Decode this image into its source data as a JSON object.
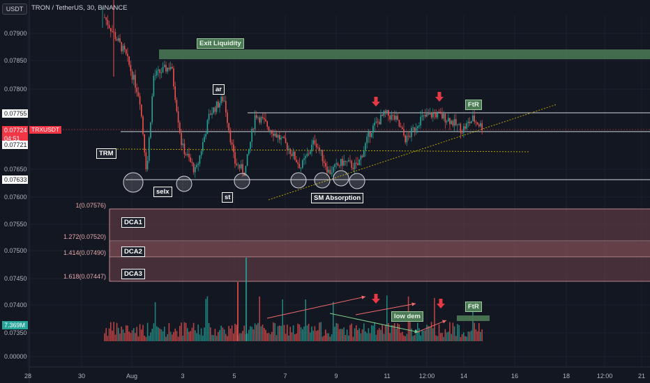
{
  "header": {
    "currency_button": "USDT",
    "title": "TRON / TetherUS, 30, BINANCE"
  },
  "price_axis": {
    "ticks": [
      "0.07900",
      "0.07850",
      "0.07800",
      "0.07650",
      "0.07600",
      "0.07550",
      "0.07500",
      "0.07450",
      "0.07400",
      "0.07350",
      "0.00000"
    ],
    "tags": [
      {
        "text": "0.07755",
        "style": "white"
      },
      {
        "text": "0.07724",
        "style": "red"
      },
      {
        "text": "04:51",
        "style": "red"
      },
      {
        "text": "0.07721",
        "style": "white"
      },
      {
        "text": "0.07633",
        "style": "white"
      },
      {
        "text": "7.369M",
        "style": "green"
      }
    ],
    "symbol_tag": "TRXUSDT"
  },
  "time_axis": {
    "ticks": [
      "28",
      "30",
      "Aug",
      "3",
      "5",
      "7",
      "9",
      "11",
      "12:00",
      "14",
      "16",
      "18",
      "12:00",
      "21"
    ]
  },
  "annotations": {
    "exit_liquidity": "Exit Liquidity",
    "trm": "TRM",
    "ar": "ar",
    "selx": "selx",
    "st": "st",
    "sm_absorption": "SM Absorption",
    "ftr_price": "FtR",
    "ftr_volume": "FtR",
    "low_dem": "low dem",
    "dca1": "DCA1",
    "dca2": "DCA2",
    "dca3": "DCA3"
  },
  "fib_levels": [
    {
      "text": "1(0.07576)"
    },
    {
      "text": "1.272(0.07520)"
    },
    {
      "text": "1.414(0.07490)"
    },
    {
      "text": "1.618(0.07447)"
    }
  ],
  "colors": {
    "background": "#131722",
    "up": "#26a69a",
    "down": "#ef5350",
    "exit_zone": "#4c7a55",
    "dca_zone": "#5d3a42",
    "arrow": "#e53945"
  },
  "chart_data": {
    "type": "candlestick",
    "title": "TRON / TetherUS, 30, BINANCE",
    "x_ticks": [
      "28",
      "30",
      "Aug",
      "3",
      "5",
      "7",
      "9",
      "11",
      "12:00",
      "14",
      "16",
      "18",
      "12:00",
      "21"
    ],
    "ylim": [
      0.0733,
      0.0795
    ],
    "key_levels": [
      0.07755,
      0.07724,
      0.07721,
      0.07633
    ],
    "last_price": 0.07724,
    "last_volume": "7.369M",
    "price_path": [
      {
        "t": 0,
        "p": 0.0793
      },
      {
        "t": 0.6,
        "p": 0.0786
      },
      {
        "t": 1.0,
        "p": 0.0778
      },
      {
        "t": 1.2,
        "p": 0.0764
      },
      {
        "t": 1.4,
        "p": 0.0782
      },
      {
        "t": 1.9,
        "p": 0.0784
      },
      {
        "t": 2.2,
        "p": 0.0769
      },
      {
        "t": 2.6,
        "p": 0.0764
      },
      {
        "t": 3.0,
        "p": 0.0775
      },
      {
        "t": 3.4,
        "p": 0.0778
      },
      {
        "t": 3.7,
        "p": 0.0766
      },
      {
        "t": 4.0,
        "p": 0.0764
      },
      {
        "t": 4.3,
        "p": 0.0775
      },
      {
        "t": 4.6,
        "p": 0.0773
      },
      {
        "t": 5.2,
        "p": 0.0769
      },
      {
        "t": 5.6,
        "p": 0.0765
      },
      {
        "t": 6.0,
        "p": 0.077
      },
      {
        "t": 6.4,
        "p": 0.0764
      },
      {
        "t": 6.8,
        "p": 0.0766
      },
      {
        "t": 7.2,
        "p": 0.0765
      },
      {
        "t": 7.6,
        "p": 0.0772
      },
      {
        "t": 8.0,
        "p": 0.0775
      },
      {
        "t": 8.3,
        "p": 0.0774
      },
      {
        "t": 8.6,
        "p": 0.077
      },
      {
        "t": 9.0,
        "p": 0.0774
      },
      {
        "t": 9.4,
        "p": 0.0775
      },
      {
        "t": 9.8,
        "p": 0.0774
      },
      {
        "t": 10.2,
        "p": 0.0772
      },
      {
        "t": 10.5,
        "p": 0.0774
      },
      {
        "t": 10.8,
        "p": 0.07724
      }
    ]
  }
}
